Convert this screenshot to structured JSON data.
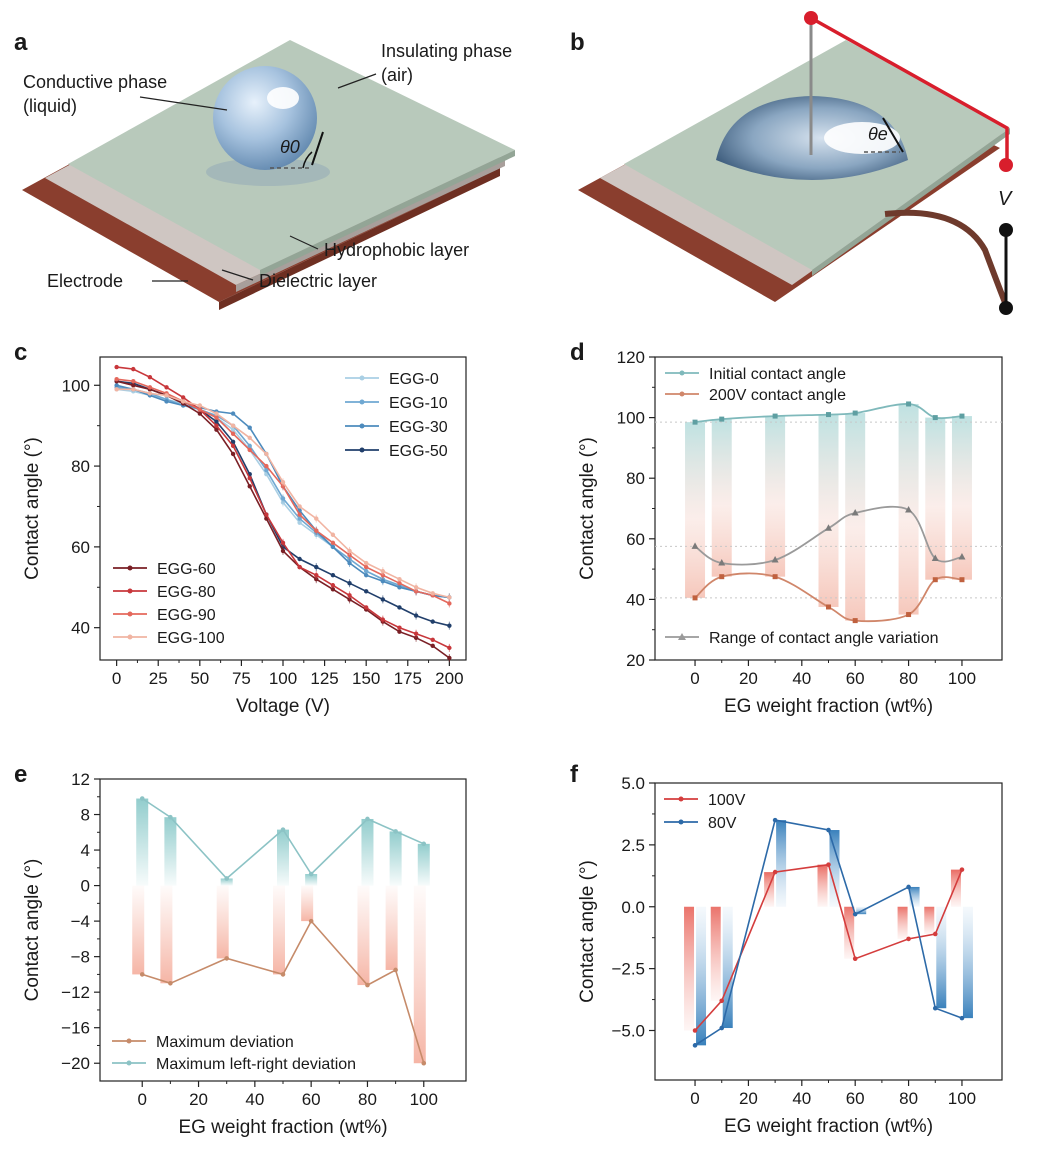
{
  "panels": {
    "a": {
      "letter": "a",
      "labels": {
        "conductive_1": "Conductive phase",
        "conductive_2": "(liquid)",
        "insulating_1": "Insulating phase",
        "insulating_2": "(air)",
        "angle": "θ0",
        "hydrophobic": "Hydrophobic layer",
        "dielectric": "Dielectric layer",
        "electrode": "Electrode"
      }
    },
    "b": {
      "letter": "b",
      "labels": {
        "angle": "θe",
        "voltage": "V"
      }
    }
  },
  "colors": {
    "plate_top": "#b8c9bb",
    "plate_edge": "#9aab9d",
    "dielectric": "#cfc6c2",
    "electrode": "#8a3e2e",
    "wire_red": "#d81e2c",
    "wire_brown": "#6e3a2c",
    "teal": "#7fb9bb",
    "salmon": "#d0866a",
    "grey_line": "#9a9a9a"
  },
  "chart_data": [
    {
      "id": "c",
      "letter": "c",
      "type": "line",
      "xlabel": "Voltage (V)",
      "ylabel": "Contact angle (°)",
      "xlim": [
        -10,
        210
      ],
      "ylim": [
        32,
        107
      ],
      "xticks": [
        0,
        25,
        50,
        75,
        100,
        125,
        150,
        175,
        200
      ],
      "yticks": [
        40,
        60,
        80,
        100
      ],
      "x": [
        0,
        10,
        20,
        30,
        40,
        50,
        60,
        70,
        80,
        90,
        100,
        110,
        120,
        130,
        140,
        150,
        160,
        170,
        180,
        190,
        200
      ],
      "series": [
        {
          "name": "EGG-0",
          "color": "#a9cfe4",
          "values": [
            99,
            98.5,
            97.5,
            96.5,
            95.5,
            94,
            92,
            89,
            84,
            78,
            71,
            66,
            63,
            60,
            57,
            54,
            52,
            50,
            49,
            48,
            47.5
          ]
        },
        {
          "name": "EGG-10",
          "color": "#6fa8d2",
          "values": [
            99.5,
            99,
            98,
            96.5,
            95,
            94,
            92.5,
            90,
            85,
            79,
            72,
            67,
            63.5,
            60,
            57,
            54,
            52,
            50.5,
            49,
            48,
            47.5
          ]
        },
        {
          "name": "EGG-30",
          "color": "#4d8bbd",
          "values": [
            100,
            99,
            97.5,
            96,
            95,
            94.5,
            93.5,
            93,
            89.5,
            83,
            75,
            69,
            64,
            60,
            56,
            53,
            51.5,
            50,
            49,
            48,
            47.5
          ]
        },
        {
          "name": "EGG-50",
          "color": "#213f6b",
          "values": [
            101,
            100.5,
            99,
            97.5,
            96,
            94,
            91,
            86,
            78,
            68,
            60,
            57,
            55,
            53,
            51,
            49,
            47,
            45,
            43,
            41.5,
            40.5
          ]
        },
        {
          "name": "EGG-60",
          "color": "#7a1f25",
          "values": [
            101,
            100,
            99,
            97.5,
            95.5,
            93,
            89,
            83,
            75,
            67,
            59,
            55,
            52,
            49.5,
            47,
            44.5,
            41.5,
            39,
            37.5,
            35.5,
            32.5
          ]
        },
        {
          "name": "EGG-80",
          "color": "#c8373b",
          "values": [
            104.5,
            104,
            102,
            99.5,
            97,
            94,
            90,
            85,
            77,
            68,
            61,
            55,
            53,
            50.5,
            48,
            45,
            42,
            40,
            38.5,
            37,
            35
          ]
        },
        {
          "name": "EGG-90",
          "color": "#e4685c",
          "values": [
            101.5,
            101,
            99.5,
            98,
            96,
            94,
            92,
            88,
            84,
            80,
            75,
            68,
            64,
            61,
            58,
            55,
            53,
            51,
            49,
            48,
            46
          ]
        },
        {
          "name": "EGG-100",
          "color": "#f1b4a2",
          "values": [
            99,
            99,
            98,
            97.5,
            96,
            95,
            93,
            90,
            87,
            83,
            76,
            70,
            67,
            63,
            59,
            56,
            54,
            52,
            50,
            48.5,
            47.5
          ]
        }
      ]
    },
    {
      "id": "d",
      "letter": "d",
      "type": "bar+line",
      "xlabel": "EG weight fraction (wt%)",
      "ylabel": "Contact angle (°)",
      "xlim": [
        -15,
        115
      ],
      "ylim": [
        20,
        120
      ],
      "xticks": [
        0,
        20,
        40,
        60,
        80,
        100
      ],
      "yticks": [
        20,
        40,
        60,
        80,
        100,
        120
      ],
      "x": [
        0,
        10,
        30,
        50,
        60,
        80,
        90,
        100
      ],
      "series": [
        {
          "name": "Initial contact angle",
          "color": "#7fb9bb",
          "values": [
            98.5,
            99.5,
            100.5,
            101,
            101.5,
            104.5,
            100,
            100.5
          ]
        },
        {
          "name": "200V contact angle",
          "color": "#d0866a",
          "values": [
            40.5,
            47.5,
            47.5,
            37.5,
            33,
            35,
            46.5,
            46.5
          ]
        },
        {
          "name": "Range of contact angle variation",
          "color": "#9a9a9a",
          "values": [
            57.5,
            52,
            53,
            63.5,
            68.5,
            69.5,
            53.5,
            54
          ]
        }
      ],
      "reference_lines": [
        98.5,
        57.5,
        40.5
      ]
    },
    {
      "id": "e",
      "letter": "e",
      "type": "bar+line",
      "xlabel": "EG weight fraction (wt%)",
      "ylabel": "Contact angle (°)",
      "xlim": [
        -15,
        115
      ],
      "ylim": [
        -22,
        12
      ],
      "xticks": [
        0,
        20,
        40,
        60,
        80,
        100
      ],
      "yticks": [
        -20,
        -16,
        -12,
        -8,
        -4,
        0,
        4,
        8,
        12
      ],
      "x": [
        0,
        10,
        30,
        50,
        60,
        80,
        90,
        100
      ],
      "series": [
        {
          "name": "Maximum deviation",
          "color": "#c68b6a",
          "values": [
            -10,
            -11,
            -8.2,
            -10,
            -4,
            -11.2,
            -9.5,
            -20
          ]
        },
        {
          "name": "Maximum left-right deviation",
          "color": "#8cc3c5",
          "values": [
            9.8,
            7.7,
            0.8,
            6.3,
            1.3,
            7.5,
            6.1,
            4.7
          ]
        }
      ]
    },
    {
      "id": "f",
      "letter": "f",
      "type": "bar+line",
      "xlabel": "EG weight fraction (wt%)",
      "ylabel": "Contact angle (°)",
      "xlim": [
        -15,
        115
      ],
      "ylim": [
        -7,
        5
      ],
      "xticks": [
        0,
        20,
        40,
        60,
        80,
        100
      ],
      "yticks": [
        -5.0,
        -2.5,
        0.0,
        2.5,
        5.0
      ],
      "x": [
        0,
        10,
        30,
        50,
        60,
        80,
        90,
        100
      ],
      "series": [
        {
          "name": "100V",
          "color": "#d43d3d",
          "values": [
            -5.0,
            -3.8,
            1.4,
            1.7,
            -2.1,
            -1.3,
            -1.1,
            1.5
          ]
        },
        {
          "name": "80V",
          "color": "#2d6aa8",
          "values": [
            -5.6,
            -4.9,
            3.5,
            3.1,
            -0.3,
            0.8,
            -4.1,
            -4.5
          ]
        }
      ]
    }
  ]
}
